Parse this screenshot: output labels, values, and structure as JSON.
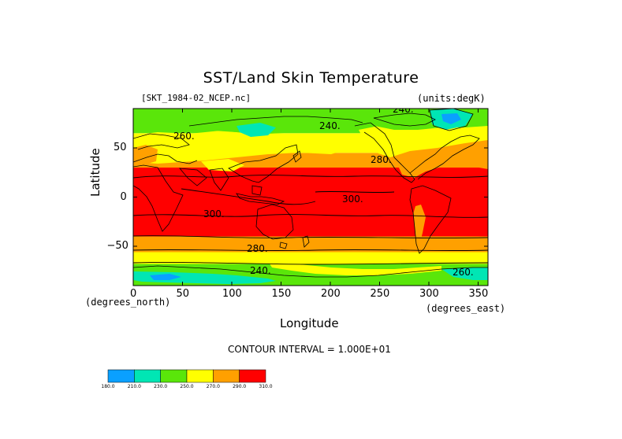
{
  "chart_data": {
    "type": "heatmap",
    "title": "SST/Land Skin Temperature",
    "file_label": "[SKT_1984-02_NCEP.nc]",
    "units_label": "(units:degK)",
    "xlabel": "Longitude",
    "ylabel": "Latitude",
    "x_unit_label": "(degrees_east)",
    "y_unit_label": "(degrees_north)",
    "xlim": [
      0,
      360
    ],
    "ylim": [
      -90,
      90
    ],
    "x_ticks": [
      "0",
      "50",
      "100",
      "150",
      "200",
      "250",
      "300",
      "350"
    ],
    "y_ticks": [
      "50",
      "0",
      "−50"
    ],
    "contour_interval_text": "CONTOUR INTERVAL = 1.000E+01",
    "contour_labels": [
      "240.",
      "260.",
      "240.",
      "280.",
      "300.",
      "300.",
      "280.",
      "240.",
      "260."
    ],
    "colorbar": {
      "bins": [
        {
          "range": [
            180,
            210
          ],
          "color": "#0aa0ff"
        },
        {
          "range": [
            210,
            230
          ],
          "color": "#00e6b4"
        },
        {
          "range": [
            230,
            250
          ],
          "color": "#5ae60a"
        },
        {
          "range": [
            250,
            270
          ],
          "color": "#ffff00"
        },
        {
          "range": [
            270,
            290
          ],
          "color": "#ffa000"
        },
        {
          "range": [
            290,
            310
          ],
          "color": "#ff0000"
        }
      ],
      "tick_labels": [
        "180.0",
        "210.0",
        "230.0",
        "250.0",
        "270.0",
        "290.0",
        "310.0"
      ]
    },
    "bands": [
      {
        "lat_range": [
          -90,
          -68
        ],
        "value": "230-250",
        "color": "#5ae60a"
      },
      {
        "lat_range": [
          -68,
          -56
        ],
        "value": "250-270",
        "color": "#ffff00"
      },
      {
        "lat_range": [
          -56,
          -40
        ],
        "value": "270-290",
        "color": "#ffa000"
      },
      {
        "lat_range": [
          -40,
          30
        ],
        "value": "290-310",
        "color": "#ff0000"
      },
      {
        "lat_range": [
          30,
          45
        ],
        "value": "270-290",
        "color": "#ffa000"
      },
      {
        "lat_range": [
          45,
          65
        ],
        "value": "250-270",
        "color": "#ffff00"
      },
      {
        "lat_range": [
          65,
          90
        ],
        "value": "230-250",
        "color": "#5ae60a"
      }
    ]
  }
}
